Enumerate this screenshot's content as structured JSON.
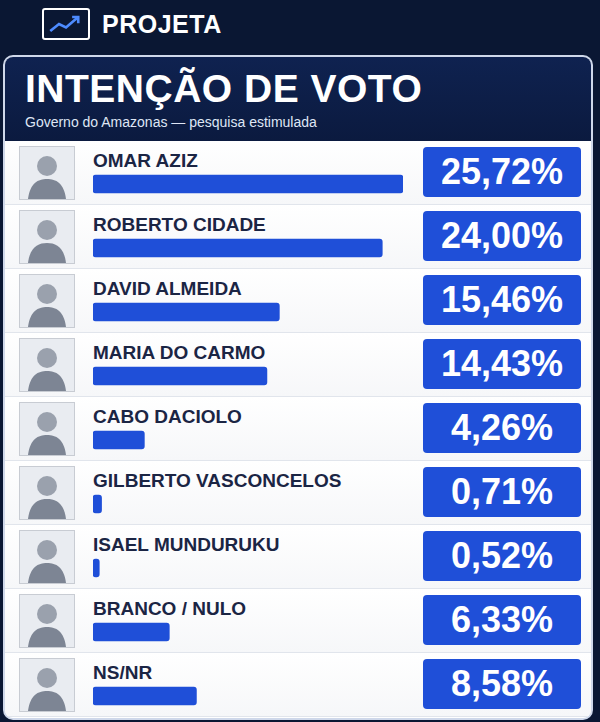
{
  "header": {
    "brand": "PROJETA"
  },
  "chart_data": {
    "type": "bar",
    "title": "INTENÇÃO DE VOTO",
    "subtitle": "Governo do Amazonas — pesquisa estimulada",
    "orientation": "horizontal",
    "categories": [
      "OMAR AZIZ",
      "ROBERTO CIDADE",
      "DAVID ALMEIDA",
      "MARIA DO CARMO",
      "CABO DACIOLO",
      "GILBERTO VASCONCELOS",
      "ISAEL MUNDURUKU",
      "BRANCO / NULO",
      "NS/NR"
    ],
    "values": [
      25.72,
      24.0,
      15.46,
      14.43,
      4.26,
      0.71,
      0.52,
      6.33,
      8.58
    ],
    "value_labels": [
      "25,72%",
      "24,00%",
      "15,46%",
      "14,43%",
      "4,26%",
      "0,71%",
      "0,52%",
      "6,33%",
      "8,58%"
    ],
    "color": "#1f4fd8",
    "data_labels": true,
    "tick_labels": false,
    "grid": false
  }
}
